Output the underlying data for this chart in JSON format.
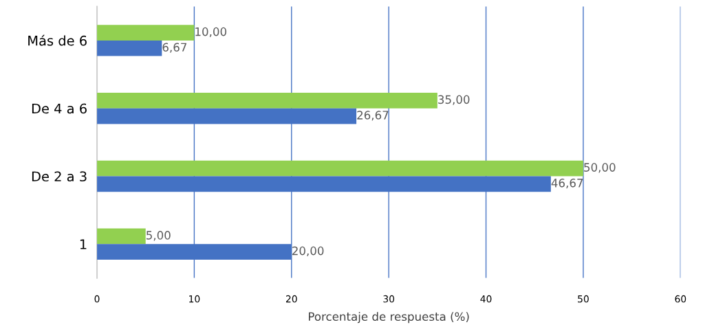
{
  "chart_data": {
    "type": "bar",
    "orientation": "horizontal",
    "xlabel": "Porcentaje de respuesta (%)",
    "categories": [
      "Más de 6",
      "De 4 a 6",
      "De 2 a 3",
      "1"
    ],
    "series": [
      {
        "color": "#92d050",
        "values": [
          10.0,
          35.0,
          50.0,
          5.0
        ],
        "value_labels": [
          "10,00",
          "35,00",
          "50,00",
          "5,00"
        ]
      },
      {
        "color": "#4472c4",
        "values": [
          6.67,
          26.67,
          46.67,
          20.0
        ],
        "value_labels": [
          "6,67",
          "26,67",
          "46,67",
          "20,00"
        ]
      }
    ],
    "xlim": [
      0,
      60
    ],
    "xticks": [
      0,
      10,
      20,
      30,
      40,
      50,
      60
    ],
    "grid": "x",
    "legend": false
  }
}
